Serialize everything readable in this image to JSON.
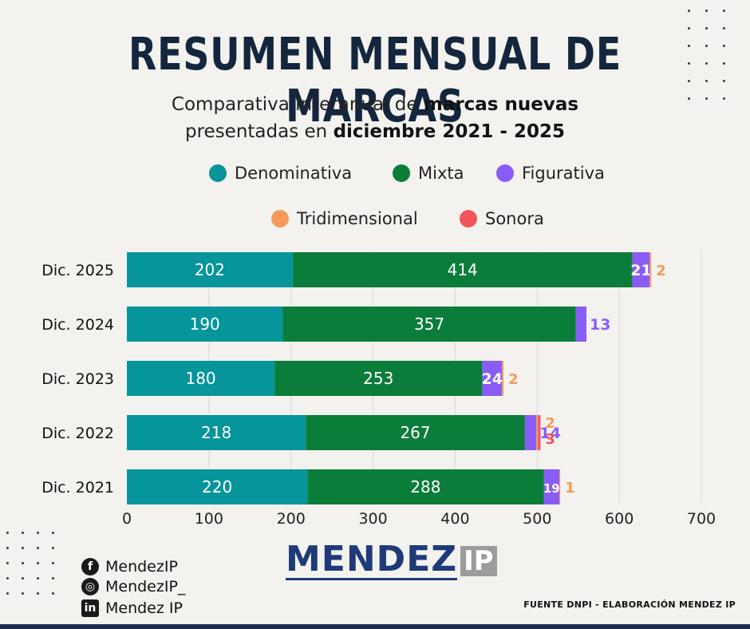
{
  "title": "RESUMEN MENSUAL DE MARCAS",
  "subtitle_line1_pre": "Comparativa interanual de ",
  "subtitle_line1_bold": "marcas nuevas",
  "subtitle_line2_pre": "presentadas en ",
  "subtitle_line2_bold": "diciembre 2021 - 2025",
  "colors": {
    "Denominativa": "#05959a",
    "Mixta": "#0b7d3a",
    "Figurativa": "#8a5cf6",
    "Tridimensional": "#f59a5b",
    "Sonora": "#f2545b"
  },
  "chart_data": {
    "type": "bar",
    "orientation": "horizontal",
    "stacked": true,
    "categories": [
      "Dic. 2025",
      "Dic. 2024",
      "Dic. 2023",
      "Dic. 2022",
      "Dic. 2021"
    ],
    "series": [
      {
        "name": "Denominativa",
        "values": [
          202,
          190,
          180,
          218,
          220
        ]
      },
      {
        "name": "Mixta",
        "values": [
          414,
          357,
          253,
          267,
          288
        ]
      },
      {
        "name": "Figurativa",
        "values": [
          21,
          13,
          24,
          14,
          19
        ]
      },
      {
        "name": "Tridimensional",
        "values": [
          2,
          0,
          2,
          2,
          1
        ]
      },
      {
        "name": "Sonora",
        "values": [
          0,
          0,
          0,
          3,
          0
        ]
      }
    ],
    "xlim": [
      0,
      700
    ],
    "xticks": [
      0,
      100,
      200,
      300,
      400,
      500,
      600,
      700
    ],
    "grid": true,
    "legend_position": "top"
  },
  "social": [
    {
      "icon": "facebook-icon",
      "glyph": "f",
      "label": "MendezIP"
    },
    {
      "icon": "instagram-icon",
      "glyph": "◎",
      "label": "MendezIP_"
    },
    {
      "icon": "linkedin-icon",
      "glyph": "in",
      "label": "Mendez IP"
    }
  ],
  "logo": {
    "main": "MENDEZ",
    "badge": "IP"
  },
  "source": "FUENTE DNPI - ELABORACIÓN MENDEZ IP"
}
